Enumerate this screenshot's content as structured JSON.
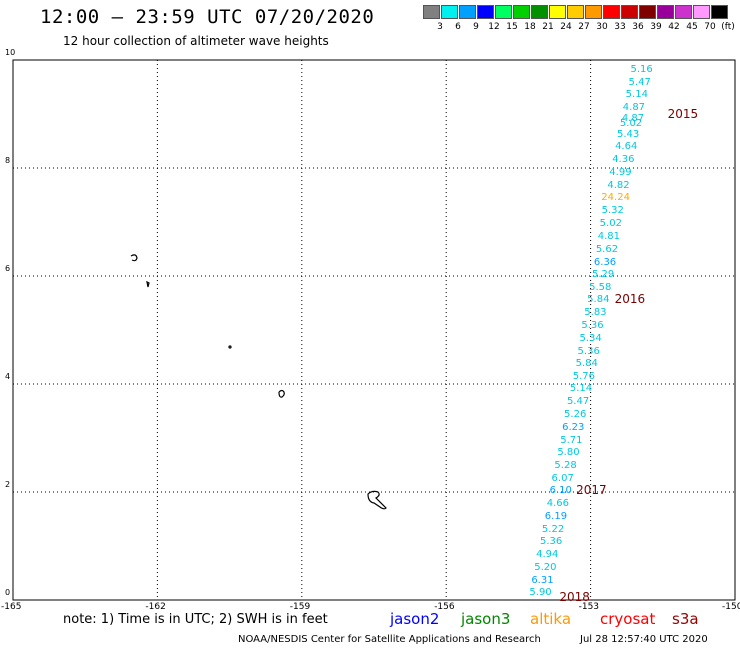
{
  "header": {
    "title": "12:00 – 23:59 UTC 07/20/2020",
    "subtitle": "12 hour collection of altimeter wave heights"
  },
  "colorbar": {
    "swatches": [
      "#808080",
      "#00f0f0",
      "#00a0ff",
      "#0000ff",
      "#00ff60",
      "#00d000",
      "#009000",
      "#ffff00",
      "#ffcc00",
      "#ff9900",
      "#ff0000",
      "#cc0000",
      "#800000",
      "#990099",
      "#cc33cc",
      "#ff99ff",
      "#000000"
    ],
    "labels": [
      "3",
      "6",
      "9",
      "12",
      "15",
      "18",
      "21",
      "24",
      "27",
      "30",
      "33",
      "36",
      "39",
      "42",
      "45",
      "70",
      "(ft)"
    ]
  },
  "axes": {
    "xticks": [
      -165,
      -162,
      -159,
      -156,
      -153,
      -150
    ],
    "yticks": [
      0,
      2,
      4,
      6,
      8,
      10
    ],
    "xlim": [
      -165,
      -150
    ],
    "ylim": [
      0,
      10
    ]
  },
  "measurements": [
    {
      "v": "5.16",
      "lon": -151.94,
      "lat": 9.82,
      "color": "#00c8e0"
    },
    {
      "v": "5.47",
      "lon": -151.98,
      "lat": 9.58,
      "color": "#00c8e0"
    },
    {
      "v": "5.14",
      "lon": -152.04,
      "lat": 9.35,
      "color": "#00c8e0"
    },
    {
      "v": "4.87",
      "lon": -152.1,
      "lat": 9.11,
      "color": "#00c8e0"
    },
    {
      "v": "4.87",
      "lon": -152.12,
      "lat": 8.9,
      "color": "#00c8e0"
    },
    {
      "v": "5.02",
      "lon": -152.16,
      "lat": 8.82,
      "color": "#00c8e0"
    },
    {
      "v": "5.43",
      "lon": -152.22,
      "lat": 8.62,
      "color": "#00c8e0"
    },
    {
      "v": "4.64",
      "lon": -152.26,
      "lat": 8.38,
      "color": "#00c8e0"
    },
    {
      "v": "4.36",
      "lon": -152.32,
      "lat": 8.14,
      "color": "#00c8e0"
    },
    {
      "v": "4.99",
      "lon": -152.38,
      "lat": 7.91,
      "color": "#00c8e0"
    },
    {
      "v": "4.82",
      "lon": -152.42,
      "lat": 7.67,
      "color": "#00c8e0"
    },
    {
      "v": "24.24",
      "lon": -152.48,
      "lat": 7.44,
      "color": "#ffaa00"
    },
    {
      "v": "5.32",
      "lon": -152.54,
      "lat": 7.2,
      "color": "#00c8e0"
    },
    {
      "v": "5.02",
      "lon": -152.58,
      "lat": 6.96,
      "color": "#00c8e0"
    },
    {
      "v": "4.81",
      "lon": -152.62,
      "lat": 6.72,
      "color": "#00c8e0"
    },
    {
      "v": "5.62",
      "lon": -152.66,
      "lat": 6.48,
      "color": "#00c8e0"
    },
    {
      "v": "6.36",
      "lon": -152.7,
      "lat": 6.25,
      "color": "#00a0ff"
    },
    {
      "v": "5.29",
      "lon": -152.74,
      "lat": 6.01,
      "color": "#00c8e0"
    },
    {
      "v": "5.58",
      "lon": -152.8,
      "lat": 5.78,
      "color": "#00c8e0"
    },
    {
      "v": "5.84",
      "lon": -152.84,
      "lat": 5.55,
      "color": "#00c8e0"
    },
    {
      "v": "5.83",
      "lon": -152.9,
      "lat": 5.31,
      "color": "#00c8e0"
    },
    {
      "v": "5.36",
      "lon": -152.96,
      "lat": 5.08,
      "color": "#00c8e0"
    },
    {
      "v": "5.34",
      "lon": -153.0,
      "lat": 4.84,
      "color": "#00c8e0"
    },
    {
      "v": "5.36",
      "lon": -153.04,
      "lat": 4.6,
      "color": "#00c8e0"
    },
    {
      "v": "5.84",
      "lon": -153.08,
      "lat": 4.37,
      "color": "#00c8e0"
    },
    {
      "v": "5.76",
      "lon": -153.14,
      "lat": 4.13,
      "color": "#00c8e0"
    },
    {
      "v": "5.14",
      "lon": -153.2,
      "lat": 3.9,
      "color": "#00c8e0"
    },
    {
      "v": "5.47",
      "lon": -153.26,
      "lat": 3.66,
      "color": "#00c8e0"
    },
    {
      "v": "5.26",
      "lon": -153.32,
      "lat": 3.42,
      "color": "#00c8e0"
    },
    {
      "v": "6.23",
      "lon": -153.36,
      "lat": 3.18,
      "color": "#00a0ff"
    },
    {
      "v": "5.71",
      "lon": -153.4,
      "lat": 2.95,
      "color": "#00c8e0"
    },
    {
      "v": "5.80",
      "lon": -153.46,
      "lat": 2.72,
      "color": "#00c8e0"
    },
    {
      "v": "5.28",
      "lon": -153.52,
      "lat": 2.48,
      "color": "#00c8e0"
    },
    {
      "v": "6.07",
      "lon": -153.58,
      "lat": 2.24,
      "color": "#00c8e0"
    },
    {
      "v": "6.10",
      "lon": -153.62,
      "lat": 2.01,
      "color": "#00a0ff"
    },
    {
      "v": "4.66",
      "lon": -153.68,
      "lat": 1.78,
      "color": "#00c8e0"
    },
    {
      "v": "6.19",
      "lon": -153.72,
      "lat": 1.54,
      "color": "#00a0ff"
    },
    {
      "v": "5.22",
      "lon": -153.78,
      "lat": 1.3,
      "color": "#00c8e0"
    },
    {
      "v": "5.36",
      "lon": -153.82,
      "lat": 1.07,
      "color": "#00c8e0"
    },
    {
      "v": "4.94",
      "lon": -153.9,
      "lat": 0.84,
      "color": "#00c8e0"
    },
    {
      "v": "5.20",
      "lon": -153.94,
      "lat": 0.6,
      "color": "#00c8e0"
    },
    {
      "v": "6.31",
      "lon": -154.0,
      "lat": 0.36,
      "color": "#00a0ff"
    },
    {
      "v": "5.90",
      "lon": -154.04,
      "lat": 0.13,
      "color": "#00c8e0"
    }
  ],
  "year_labels": [
    {
      "text": "2015",
      "lon": -151.4,
      "lat": 9.0
    },
    {
      "text": "2016",
      "lon": -152.5,
      "lat": 5.58
    },
    {
      "text": "2017",
      "lon": -153.3,
      "lat": 2.04
    },
    {
      "text": "2018",
      "lon": -153.65,
      "lat": 0.05
    }
  ],
  "footer": {
    "note": "note: 1) Time is in UTC; 2) SWH is in feet",
    "satellites": [
      {
        "name": "jason2",
        "color": "#0000ff"
      },
      {
        "name": "jason3",
        "color": "#008800"
      },
      {
        "name": "altika",
        "color": "#ff9900"
      },
      {
        "name": "cryosat",
        "color": "#ff0000"
      },
      {
        "name": "s3a",
        "color": "#990000"
      }
    ],
    "credit": "NOAA/NESDIS Center for Satellite Applications and Research",
    "timestamp": "Jul 28 12:57:40 UTC 2020"
  }
}
